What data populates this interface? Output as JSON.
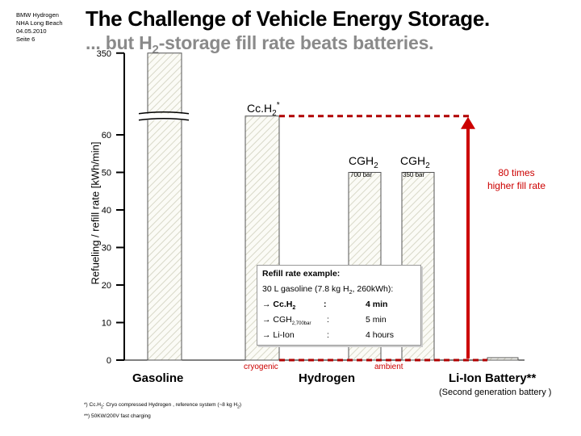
{
  "meta_lines": [
    "BMW Hydrogen",
    "NHA Long Beach",
    "04.05.2010",
    "Seite 6"
  ],
  "title_line1": "The Challenge of Vehicle Energy Storage.",
  "title_line2_prefix": "... but H",
  "title_line2_sub": "2",
  "title_line2_suffix": "-storage fill rate beats batteries.",
  "chart_data": {
    "type": "bar",
    "ylabel": "Refueling / refill rate [kWh/min]",
    "yticks": [
      0,
      10,
      20,
      30,
      40,
      50,
      60,
      350
    ],
    "y_axis_break": [
      65,
      340
    ],
    "categories": [
      "Gasoline",
      "Cc.H2*",
      "CGH2 700 bar",
      "CGH2 350 bar",
      "Li-Ion Battery**"
    ],
    "values": [
      350,
      65,
      50,
      50,
      0.5
    ],
    "bar_labels": [
      {
        "main": "Cc.H",
        "sub": "2",
        "sup": "*"
      },
      {
        "main": "CGH",
        "sub": "2",
        "note": "700 bar"
      },
      {
        "main": "CGH",
        "sub": "2",
        "note": "350 bar"
      }
    ],
    "group_labels": [
      "Gasoline",
      "Hydrogen",
      "Li-Ion Battery**"
    ],
    "battery_subtitle": "(Second generation battery )",
    "hydrogen_sub_labels": [
      "cryogenic",
      "ambient"
    ],
    "annotation": "80 times higher fill rate",
    "annotation_lines": [
      "80 times",
      "higher fill rate"
    ],
    "colors": {
      "accent": "#cc0000",
      "bar_fill": "#fbfbf6",
      "hatch": "#d8d8c8",
      "axis": "#000000"
    }
  },
  "example_box": {
    "title": "Refill rate example:",
    "line1_a": "30 L gasoline (7.8 kg H",
    "line1_sub": "2",
    "line1_b": ", 260kWh):",
    "rows": [
      {
        "arrow": "→",
        "label": "Cc.H",
        "sub": "2",
        "sep": ":",
        "value": "4 min"
      },
      {
        "arrow": "→",
        "label": "CGH",
        "sub": "2,700bar",
        "sep": ":",
        "value": "5 min"
      },
      {
        "arrow": "→",
        "label": "Li-Ion",
        "sub": "",
        "sep": ":",
        "value": "4 hours"
      }
    ]
  },
  "footnotes": {
    "f1_a": "*) Cc.H",
    "f1_sub": "2",
    "f1_b": ": Cryo compressed Hydrogen , reference system (~8 kg H",
    "f1_sub2": "2",
    "f1_c": ")",
    "f2": "**) 50KW/200V fast charging"
  }
}
